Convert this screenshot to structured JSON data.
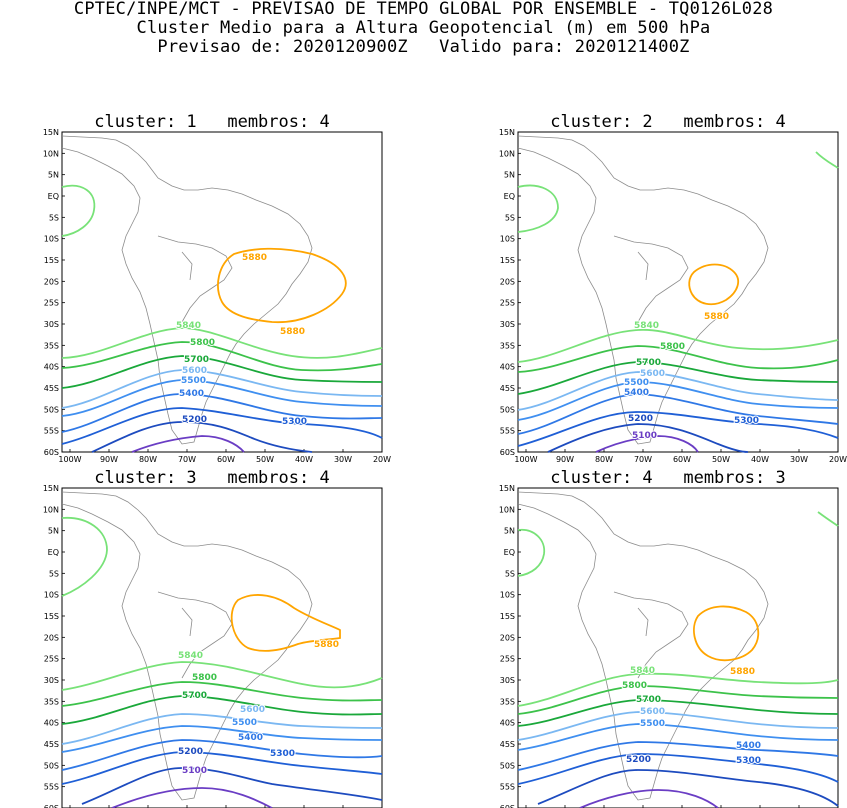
{
  "header": {
    "line1": "CPTEC/INPE/MCT - PREVISAO DE TEMPO GLOBAL POR ENSEMBLE - TQ0126L028",
    "line2": "Cluster Medio para a Altura Geopotencial (m) em 500 hPa",
    "line3": "Previsao de: 2020120900Z   Valido para: 2020121400Z"
  },
  "axes": {
    "lat_labels": [
      "15N",
      "10N",
      "5N",
      "EQ",
      "5S",
      "10S",
      "15S",
      "20S",
      "25S",
      "30S",
      "35S",
      "40S",
      "45S",
      "50S",
      "55S",
      "60S"
    ],
    "lon_labels": [
      "100W",
      "90W",
      "80W",
      "70W",
      "60W",
      "50W",
      "40W",
      "30W",
      "20W"
    ]
  },
  "colors": {
    "c5100": "#6a3dc4",
    "c5200": "#1d4bbf",
    "c5300": "#1f5fd6",
    "c5400": "#2f78e6",
    "c5500": "#3f8ff0",
    "c5600": "#7bb8f2",
    "c5700": "#1aa83a",
    "c5800": "#3cc24a",
    "c5840": "#78e278",
    "c5880": "#ffa500",
    "coast": "#8c8c8c"
  },
  "panels": [
    {
      "title": "cluster: 1   membros: 4",
      "labels": {
        "l5880a": "5880",
        "l5880b": "5880",
        "l5840": "5840",
        "l5800": "5800",
        "l5700": "5700",
        "l5600": "5600",
        "l5500": "5500",
        "l5400": "5400",
        "l5300": "5300",
        "l5200": "5200"
      }
    },
    {
      "title": "cluster: 2   membros: 4",
      "labels": {
        "l5880a": "5880",
        "l5840": "5840",
        "l5800": "5800",
        "l5700": "5700",
        "l5600": "5600",
        "l5500": "5500",
        "l5400": "5400",
        "l5300": "5300",
        "l5200": "5200",
        "l5100": "5100"
      }
    },
    {
      "title": "cluster: 3   membros: 4",
      "labels": {
        "l5880a": "5880",
        "l5840": "5840",
        "l5800": "5800",
        "l5700": "5700",
        "l5600": "5600",
        "l5500": "5500",
        "l5400": "5400",
        "l5300": "5300",
        "l5200": "5200",
        "l5100": "5100"
      }
    },
    {
      "title": "cluster: 4   membros: 3",
      "labels": {
        "l5880a": "5880",
        "l5840": "5840",
        "l5800": "5800",
        "l5700": "5700",
        "l5600": "5600",
        "l5500": "5500",
        "l5400": "5400",
        "l5300": "5300",
        "l5200": "5200"
      }
    }
  ]
}
